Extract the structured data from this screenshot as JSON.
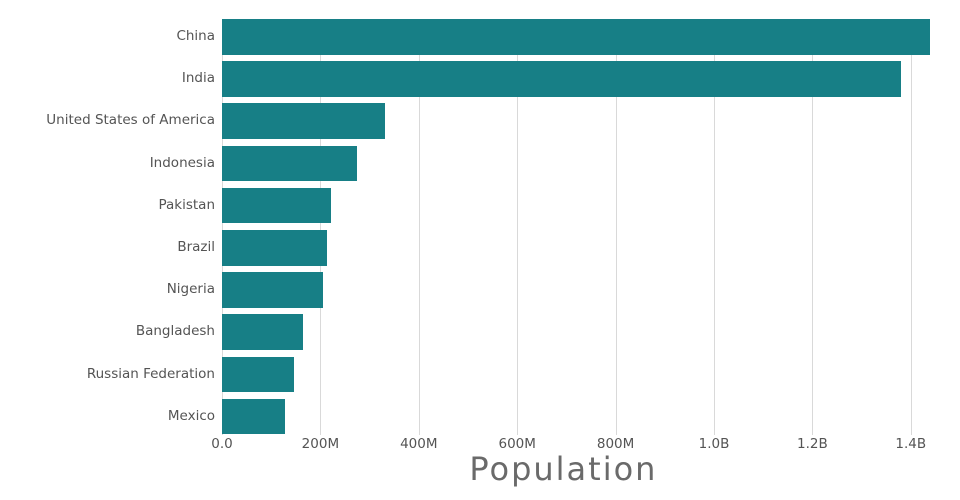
{
  "chart_data": {
    "type": "bar",
    "orientation": "horizontal",
    "categories": [
      "China",
      "India",
      "United States of America",
      "Indonesia",
      "Pakistan",
      "Brazil",
      "Nigeria",
      "Bangladesh",
      "Russian Federation",
      "Mexico"
    ],
    "values": [
      1439323776,
      1380004385,
      331002651,
      273523615,
      220892340,
      212559417,
      206139589,
      164689383,
      145934462,
      128932753
    ],
    "title": "",
    "xlabel": "Population",
    "ylabel": "",
    "x_tick_labels": [
      "0.0",
      "200M",
      "400M",
      "600M",
      "800M",
      "1.0B",
      "1.2B",
      "1.4B"
    ],
    "x_tick_values": [
      0,
      200000000,
      400000000,
      600000000,
      800000000,
      1000000000,
      1200000000,
      1400000000
    ],
    "xlim": [
      0,
      1470000000
    ],
    "grid": "vertical",
    "legend": "none",
    "bar_color": "#177f86",
    "grid_color": "#d9d9d9",
    "label_color": "#545454",
    "title_color": "#6a6a6a",
    "background_color": "#ffffff"
  }
}
